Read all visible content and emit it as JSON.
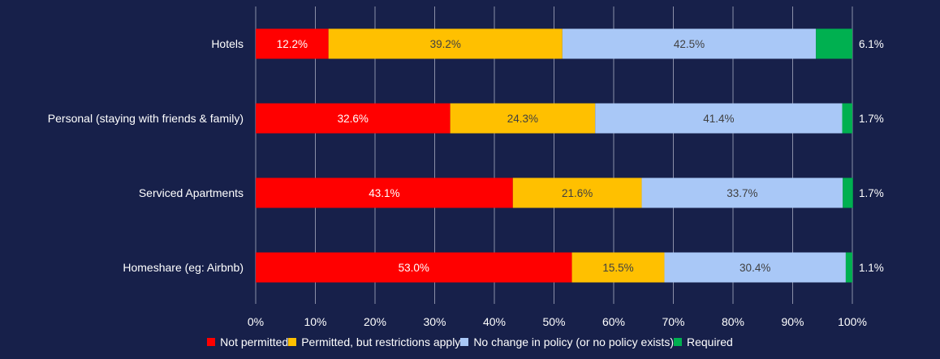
{
  "chart_data": {
    "type": "bar",
    "orientation": "horizontal",
    "stacked": true,
    "categories": [
      "Hotels",
      "Personal (staying with friends & family)",
      "Serviced Apartments",
      "Homeshare (eg: Airbnb)"
    ],
    "series": [
      {
        "name": "Not permitted",
        "color": "#ff0000",
        "values": [
          12.2,
          32.6,
          43.1,
          53.0
        ],
        "labels": [
          "12.2%",
          "32.6%",
          "43.1%",
          "53.0%"
        ]
      },
      {
        "name": "Permitted, but restrictions apply",
        "color": "#ffc000",
        "values": [
          39.2,
          24.3,
          21.6,
          15.5
        ],
        "labels": [
          "39.2%",
          "24.3%",
          "21.6%",
          "15.5%"
        ]
      },
      {
        "name": "No change in policy (or no policy exists)",
        "color": "#a9c8f7",
        "values": [
          42.5,
          41.4,
          33.7,
          30.4
        ],
        "labels": [
          "42.5%",
          "41.4%",
          "33.7%",
          "30.4%"
        ]
      },
      {
        "name": "Required",
        "color": "#00b050",
        "values": [
          6.1,
          1.7,
          1.7,
          1.1
        ],
        "labels": [
          "6.1%",
          "1.7%",
          "1.7%",
          "1.1%"
        ]
      }
    ],
    "xlim": [
      0,
      100
    ],
    "xticks": [
      "0%",
      "10%",
      "20%",
      "30%",
      "40%",
      "50%",
      "60%",
      "70%",
      "80%",
      "90%",
      "100%"
    ],
    "grid": true,
    "legend_position": "bottom"
  }
}
